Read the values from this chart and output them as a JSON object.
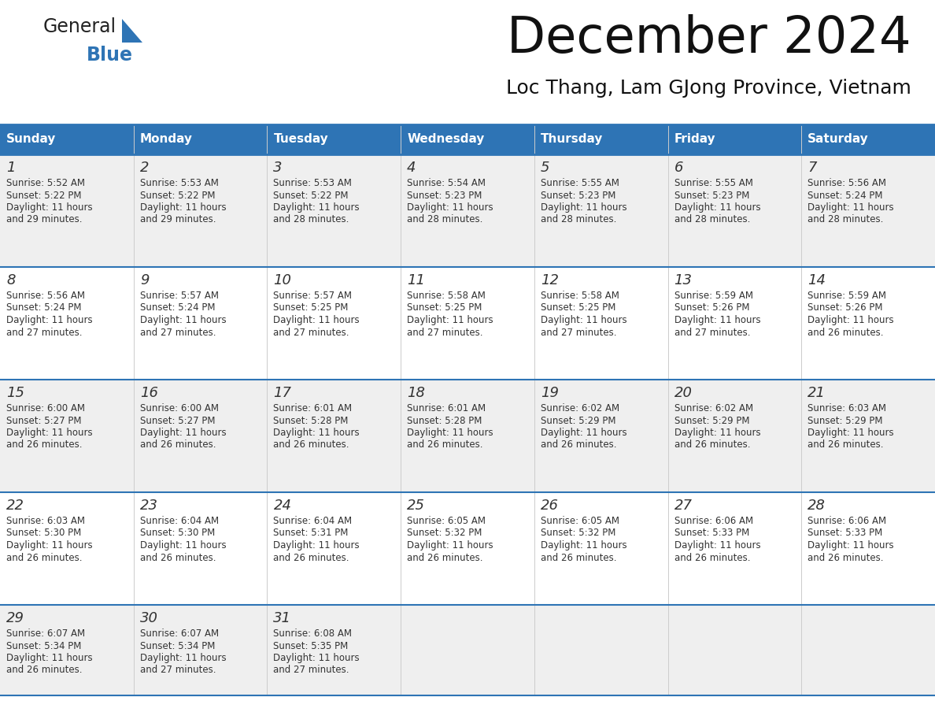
{
  "title": "December 2024",
  "subtitle": "Loc Thang, Lam GJong Province, Vietnam",
  "header_color": "#2E74B5",
  "header_text_color": "#FFFFFF",
  "cell_bg_even": "#EFEFEF",
  "cell_bg_odd": "#FFFFFF",
  "last_row_bg": "#EFEFEF",
  "grid_line_color": "#2E74B5",
  "text_color": "#333333",
  "day_headers": [
    "Sunday",
    "Monday",
    "Tuesday",
    "Wednesday",
    "Thursday",
    "Friday",
    "Saturday"
  ],
  "days": [
    {
      "day": 1,
      "col": 0,
      "row": 0,
      "sunrise": "5:52 AM",
      "sunset": "5:22 PM",
      "daylight_hours": 11,
      "daylight_minutes": 29
    },
    {
      "day": 2,
      "col": 1,
      "row": 0,
      "sunrise": "5:53 AM",
      "sunset": "5:22 PM",
      "daylight_hours": 11,
      "daylight_minutes": 29
    },
    {
      "day": 3,
      "col": 2,
      "row": 0,
      "sunrise": "5:53 AM",
      "sunset": "5:22 PM",
      "daylight_hours": 11,
      "daylight_minutes": 28
    },
    {
      "day": 4,
      "col": 3,
      "row": 0,
      "sunrise": "5:54 AM",
      "sunset": "5:23 PM",
      "daylight_hours": 11,
      "daylight_minutes": 28
    },
    {
      "day": 5,
      "col": 4,
      "row": 0,
      "sunrise": "5:55 AM",
      "sunset": "5:23 PM",
      "daylight_hours": 11,
      "daylight_minutes": 28
    },
    {
      "day": 6,
      "col": 5,
      "row": 0,
      "sunrise": "5:55 AM",
      "sunset": "5:23 PM",
      "daylight_hours": 11,
      "daylight_minutes": 28
    },
    {
      "day": 7,
      "col": 6,
      "row": 0,
      "sunrise": "5:56 AM",
      "sunset": "5:24 PM",
      "daylight_hours": 11,
      "daylight_minutes": 28
    },
    {
      "day": 8,
      "col": 0,
      "row": 1,
      "sunrise": "5:56 AM",
      "sunset": "5:24 PM",
      "daylight_hours": 11,
      "daylight_minutes": 27
    },
    {
      "day": 9,
      "col": 1,
      "row": 1,
      "sunrise": "5:57 AM",
      "sunset": "5:24 PM",
      "daylight_hours": 11,
      "daylight_minutes": 27
    },
    {
      "day": 10,
      "col": 2,
      "row": 1,
      "sunrise": "5:57 AM",
      "sunset": "5:25 PM",
      "daylight_hours": 11,
      "daylight_minutes": 27
    },
    {
      "day": 11,
      "col": 3,
      "row": 1,
      "sunrise": "5:58 AM",
      "sunset": "5:25 PM",
      "daylight_hours": 11,
      "daylight_minutes": 27
    },
    {
      "day": 12,
      "col": 4,
      "row": 1,
      "sunrise": "5:58 AM",
      "sunset": "5:25 PM",
      "daylight_hours": 11,
      "daylight_minutes": 27
    },
    {
      "day": 13,
      "col": 5,
      "row": 1,
      "sunrise": "5:59 AM",
      "sunset": "5:26 PM",
      "daylight_hours": 11,
      "daylight_minutes": 27
    },
    {
      "day": 14,
      "col": 6,
      "row": 1,
      "sunrise": "5:59 AM",
      "sunset": "5:26 PM",
      "daylight_hours": 11,
      "daylight_minutes": 26
    },
    {
      "day": 15,
      "col": 0,
      "row": 2,
      "sunrise": "6:00 AM",
      "sunset": "5:27 PM",
      "daylight_hours": 11,
      "daylight_minutes": 26
    },
    {
      "day": 16,
      "col": 1,
      "row": 2,
      "sunrise": "6:00 AM",
      "sunset": "5:27 PM",
      "daylight_hours": 11,
      "daylight_minutes": 26
    },
    {
      "day": 17,
      "col": 2,
      "row": 2,
      "sunrise": "6:01 AM",
      "sunset": "5:28 PM",
      "daylight_hours": 11,
      "daylight_minutes": 26
    },
    {
      "day": 18,
      "col": 3,
      "row": 2,
      "sunrise": "6:01 AM",
      "sunset": "5:28 PM",
      "daylight_hours": 11,
      "daylight_minutes": 26
    },
    {
      "day": 19,
      "col": 4,
      "row": 2,
      "sunrise": "6:02 AM",
      "sunset": "5:29 PM",
      "daylight_hours": 11,
      "daylight_minutes": 26
    },
    {
      "day": 20,
      "col": 5,
      "row": 2,
      "sunrise": "6:02 AM",
      "sunset": "5:29 PM",
      "daylight_hours": 11,
      "daylight_minutes": 26
    },
    {
      "day": 21,
      "col": 6,
      "row": 2,
      "sunrise": "6:03 AM",
      "sunset": "5:29 PM",
      "daylight_hours": 11,
      "daylight_minutes": 26
    },
    {
      "day": 22,
      "col": 0,
      "row": 3,
      "sunrise": "6:03 AM",
      "sunset": "5:30 PM",
      "daylight_hours": 11,
      "daylight_minutes": 26
    },
    {
      "day": 23,
      "col": 1,
      "row": 3,
      "sunrise": "6:04 AM",
      "sunset": "5:30 PM",
      "daylight_hours": 11,
      "daylight_minutes": 26
    },
    {
      "day": 24,
      "col": 2,
      "row": 3,
      "sunrise": "6:04 AM",
      "sunset": "5:31 PM",
      "daylight_hours": 11,
      "daylight_minutes": 26
    },
    {
      "day": 25,
      "col": 3,
      "row": 3,
      "sunrise": "6:05 AM",
      "sunset": "5:32 PM",
      "daylight_hours": 11,
      "daylight_minutes": 26
    },
    {
      "day": 26,
      "col": 4,
      "row": 3,
      "sunrise": "6:05 AM",
      "sunset": "5:32 PM",
      "daylight_hours": 11,
      "daylight_minutes": 26
    },
    {
      "day": 27,
      "col": 5,
      "row": 3,
      "sunrise": "6:06 AM",
      "sunset": "5:33 PM",
      "daylight_hours": 11,
      "daylight_minutes": 26
    },
    {
      "day": 28,
      "col": 6,
      "row": 3,
      "sunrise": "6:06 AM",
      "sunset": "5:33 PM",
      "daylight_hours": 11,
      "daylight_minutes": 26
    },
    {
      "day": 29,
      "col": 0,
      "row": 4,
      "sunrise": "6:07 AM",
      "sunset": "5:34 PM",
      "daylight_hours": 11,
      "daylight_minutes": 26
    },
    {
      "day": 30,
      "col": 1,
      "row": 4,
      "sunrise": "6:07 AM",
      "sunset": "5:34 PM",
      "daylight_hours": 11,
      "daylight_minutes": 27
    },
    {
      "day": 31,
      "col": 2,
      "row": 4,
      "sunrise": "6:08 AM",
      "sunset": "5:35 PM",
      "daylight_hours": 11,
      "daylight_minutes": 27
    }
  ]
}
